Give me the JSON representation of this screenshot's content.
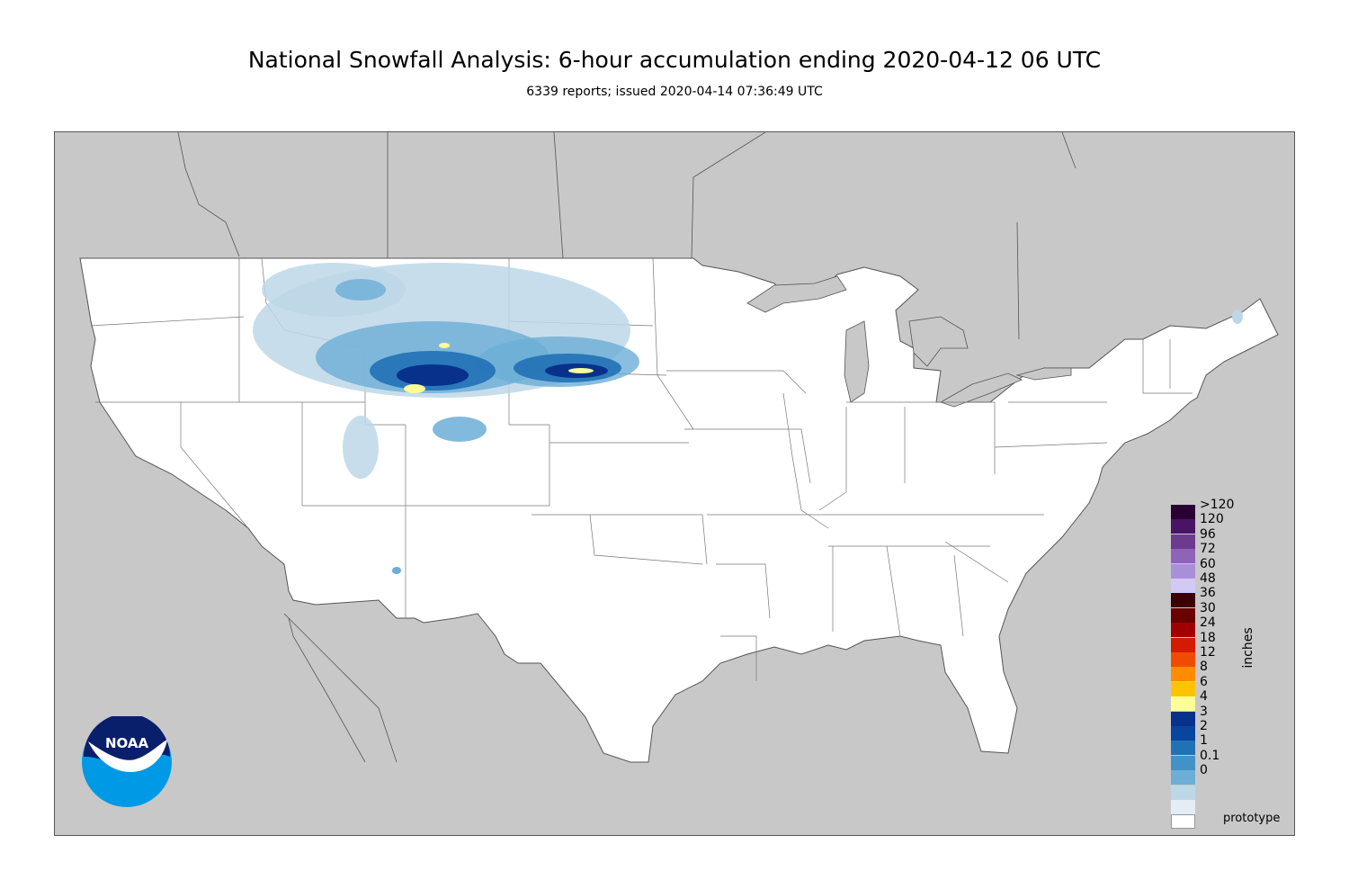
{
  "header": {
    "title": "National Snowfall Analysis: 6-hour accumulation ending 2020-04-12 06 UTC",
    "subtitle": "6339 reports; issued 2020-04-14 07:36:49 UTC"
  },
  "legend": {
    "units": "inches",
    "items": [
      {
        "label": ">120",
        "color": "#2a0033"
      },
      {
        "label": "120",
        "color": "#4a1466"
      },
      {
        "label": "96",
        "color": "#6c3a8f"
      },
      {
        "label": "72",
        "color": "#8f63b8"
      },
      {
        "label": "60",
        "color": "#a98ed8"
      },
      {
        "label": "48",
        "color": "#d2c9f5"
      },
      {
        "label": "36",
        "color": "#3d0000"
      },
      {
        "label": "30",
        "color": "#6b0000"
      },
      {
        "label": "24",
        "color": "#a10000"
      },
      {
        "label": "18",
        "color": "#d41a00"
      },
      {
        "label": "12",
        "color": "#f04c00"
      },
      {
        "label": "8",
        "color": "#ff8c00"
      },
      {
        "label": "6",
        "color": "#ffc400"
      },
      {
        "label": "4",
        "color": "#ffff96"
      },
      {
        "label": "3",
        "color": "#08318c"
      },
      {
        "label": "2",
        "color": "#08459e"
      },
      {
        "label": "1",
        "color": "#2171b5"
      },
      {
        "label": "0.1",
        "color": "#4292c6"
      },
      {
        "label": "0",
        "color": "#6baed6"
      },
      {
        "label": "",
        "color": "#bdd7e7"
      },
      {
        "label": "",
        "color": "#e4ecf6"
      },
      {
        "label": "",
        "color": "#ffffff"
      }
    ]
  },
  "footer": {
    "note": "prototype"
  },
  "logo": {
    "text": "NOAA",
    "name": "noaa-logo"
  },
  "map": {
    "land_color": "#c8c8c8",
    "us_color": "#ffffff",
    "border_color": "#555555"
  }
}
